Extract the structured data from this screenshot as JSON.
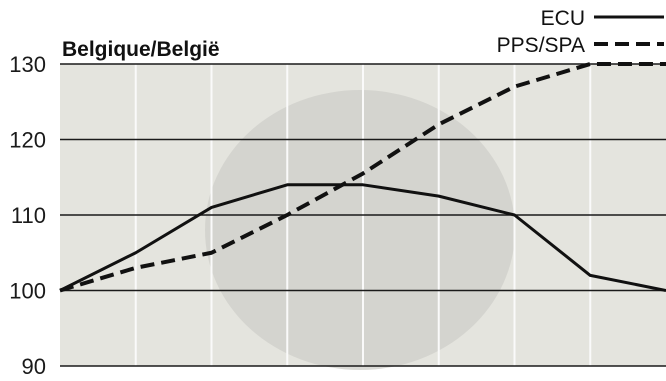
{
  "chart_data": {
    "type": "line",
    "title": "Belgique/België",
    "xlabel": "",
    "ylabel": "",
    "ylim": [
      90,
      130
    ],
    "yticks": [
      90,
      100,
      110,
      120,
      130
    ],
    "grid": "horizontal",
    "legend_position": "top-right",
    "series": [
      {
        "name": "ECU",
        "style": "solid",
        "color": "#111111",
        "values": [
          100,
          105,
          111,
          114,
          114,
          112.5,
          110,
          102,
          100
        ]
      },
      {
        "name": "PPS/SPA",
        "style": "dashed",
        "color": "#111111",
        "values": [
          100,
          103,
          105,
          110,
          115.5,
          122,
          127,
          130,
          130
        ]
      }
    ]
  },
  "colors": {
    "plot_background": "#e4e4de",
    "faded_emblem": "#cfcfca",
    "gridline": "#1a1a1a",
    "vertical_guide": "#fafafa"
  }
}
